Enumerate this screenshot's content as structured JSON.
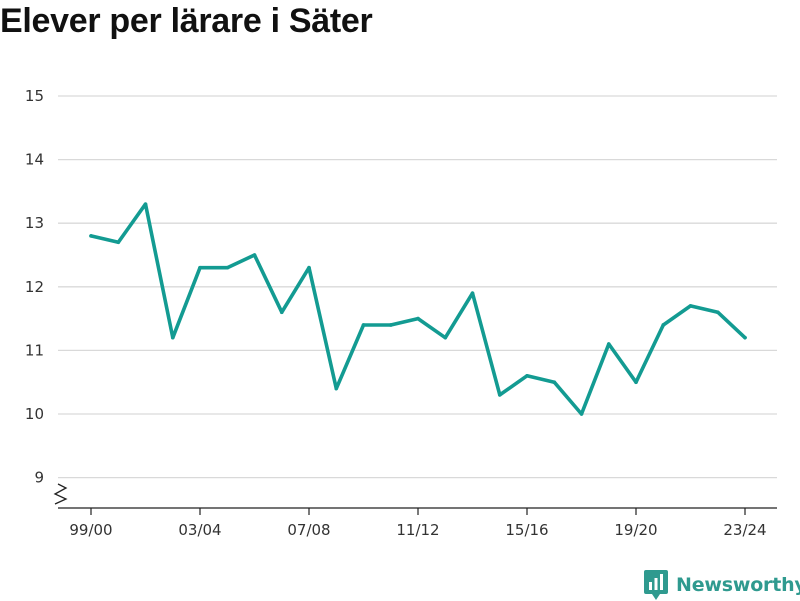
{
  "title": "Elever per lärare i Säter",
  "brand": {
    "name": "Newsworthy",
    "icon": "newsworthy-logo-icon"
  },
  "colors": {
    "line": "#139b92",
    "grid": "#d9d9d9",
    "brand": "#2f9a8f"
  },
  "chart_data": {
    "type": "line",
    "title": "Elever per lärare i Säter",
    "xlabel": "",
    "ylabel": "",
    "ylim": [
      8.5,
      15
    ],
    "yticks": [
      9,
      10,
      11,
      12,
      13,
      14,
      15
    ],
    "axis_break": true,
    "grid": true,
    "x": [
      "99/00",
      "00/01",
      "01/02",
      "02/03",
      "03/04",
      "04/05",
      "05/06",
      "06/07",
      "07/08",
      "08/09",
      "09/10",
      "10/11",
      "11/12",
      "12/13",
      "13/14",
      "14/15",
      "15/16",
      "16/17",
      "17/18",
      "18/19",
      "19/20",
      "20/21",
      "21/22",
      "22/23",
      "23/24"
    ],
    "xtick_labels": [
      "99/00",
      "03/04",
      "07/08",
      "11/12",
      "15/16",
      "19/20",
      "23/24"
    ],
    "series": [
      {
        "values": [
          12.8,
          12.7,
          13.3,
          11.2,
          12.3,
          12.3,
          12.5,
          11.6,
          12.3,
          10.4,
          11.4,
          11.4,
          11.5,
          11.2,
          11.9,
          10.3,
          10.6,
          10.5,
          10.0,
          11.1,
          10.5,
          11.4,
          11.7,
          11.6,
          11.2
        ]
      }
    ]
  }
}
